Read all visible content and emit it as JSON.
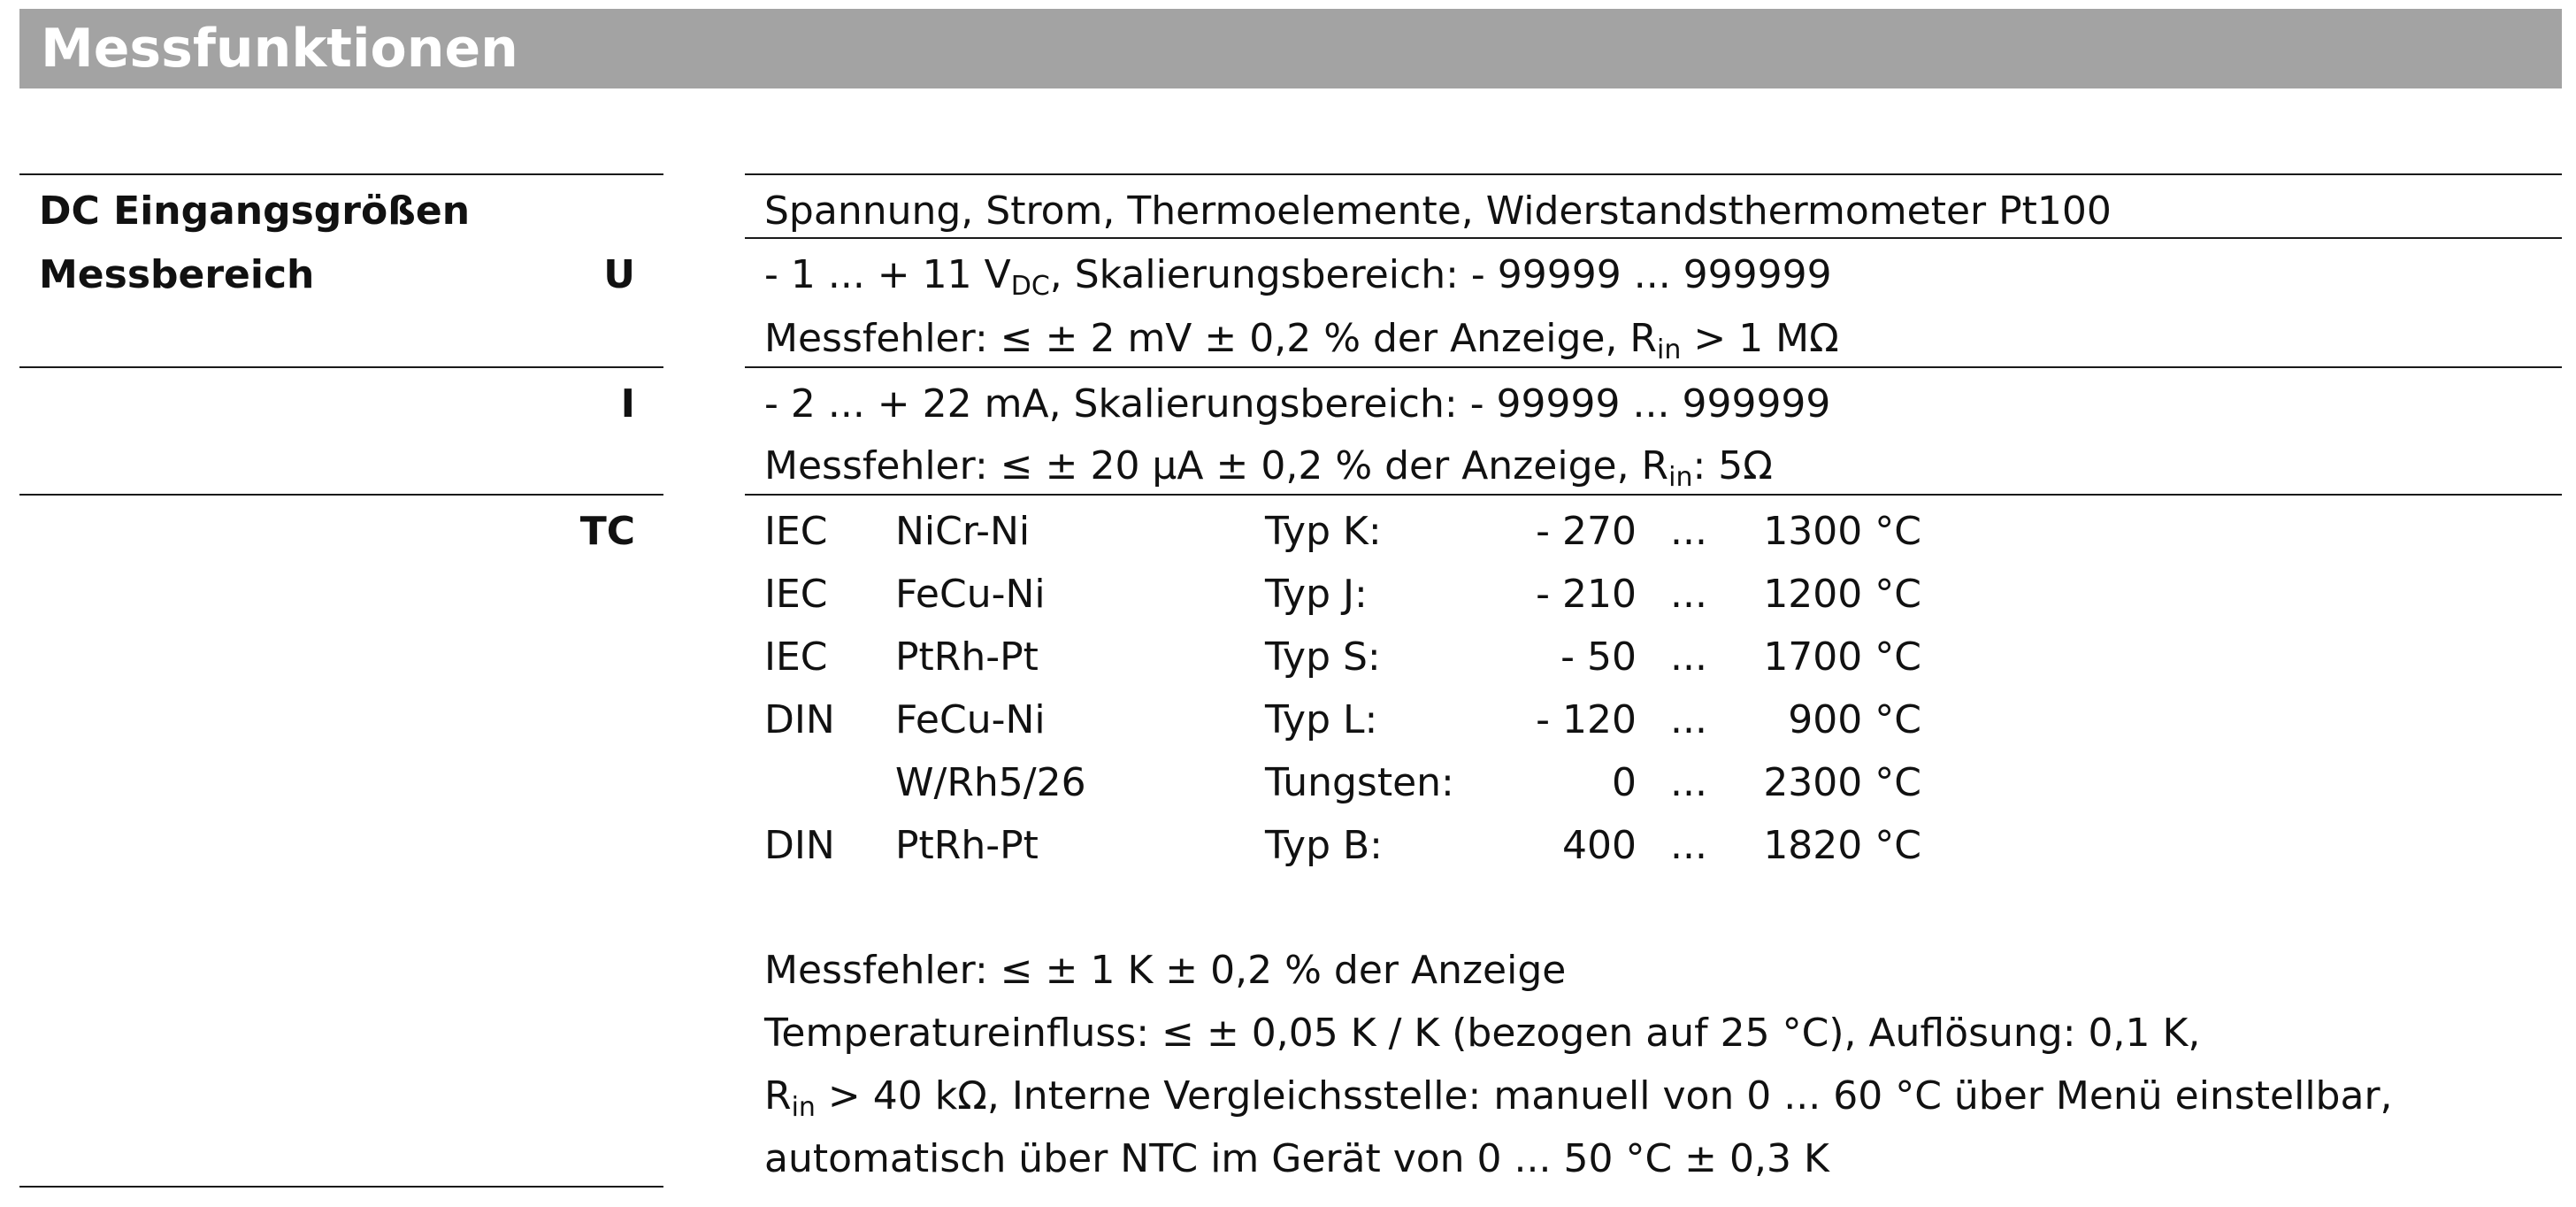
{
  "section_title": "Messfunktionen",
  "dc_inputs": {
    "label": "DC Eingangsgrößen",
    "value": "Spannung, Strom, Thermoelemente, Widerstandsthermometer Pt100"
  },
  "range_label": "Messbereich",
  "voltage": {
    "symbol": "U",
    "range_text": "- 1 ... + 11 V",
    "range_sub": "DC",
    "range_suffix": ", Skalierungsbereich: - 99999 ... 999999",
    "error_text": "Messfehler: ≤ ± 2 mV ± 0,2 % der Anzeige, R",
    "error_sub": "in",
    "error_suffix": " > 1 MΩ"
  },
  "current": {
    "symbol": "I",
    "range_text": "- 2 ... + 22 mA, Skalierungsbereich: - 99999 ... 999999",
    "error_text": "Messfehler: ≤ ± 20 µA ± 0,2 % der Anzeige, R",
    "error_sub": "in",
    "error_suffix": ": 5Ω"
  },
  "thermocouple": {
    "symbol": "TC",
    "rows": [
      {
        "standard": "IEC",
        "material": "NiCr-Ni",
        "type": "Typ K:",
        "min": "- 270",
        "sep": "...",
        "max": "1300 °C"
      },
      {
        "standard": "IEC",
        "material": "FeCu-Ni",
        "type": "Typ J:",
        "min": "- 210",
        "sep": "...",
        "max": "1200 °C"
      },
      {
        "standard": "IEC",
        "material": "PtRh-Pt",
        "type": "Typ S:",
        "min": "- 50",
        "sep": "...",
        "max": "1700 °C"
      },
      {
        "standard": "DIN",
        "material": "FeCu-Ni",
        "type": "Typ L:",
        "min": "- 120",
        "sep": "...",
        "max": "900 °C"
      },
      {
        "standard": "",
        "material": "W/Rh5/26",
        "type": "Tungsten:",
        "min": "0",
        "sep": "...",
        "max": "2300 °C"
      },
      {
        "standard": "DIN",
        "material": "PtRh-Pt",
        "type": "Typ B:",
        "min": "400",
        "sep": "...",
        "max": "1820 °C"
      }
    ],
    "error_line": "Messfehler: ≤ ± 1 K ± 0,2 % der Anzeige",
    "temp_line": "Temperatureinfluss: ≤ ± 0,05 K / K (bezogen auf 25 °C), Auflösung: 0,1 K,",
    "rin_prefix": "R",
    "rin_sub": "in",
    "rin_suffix": " > 40 kΩ, Interne Vergleichsstelle: manuell von 0 ... 60 °C über Menü einstellbar,",
    "auto_line": "automatisch über NTC im Gerät von 0 ... 50 °C ± 0,3 K"
  }
}
